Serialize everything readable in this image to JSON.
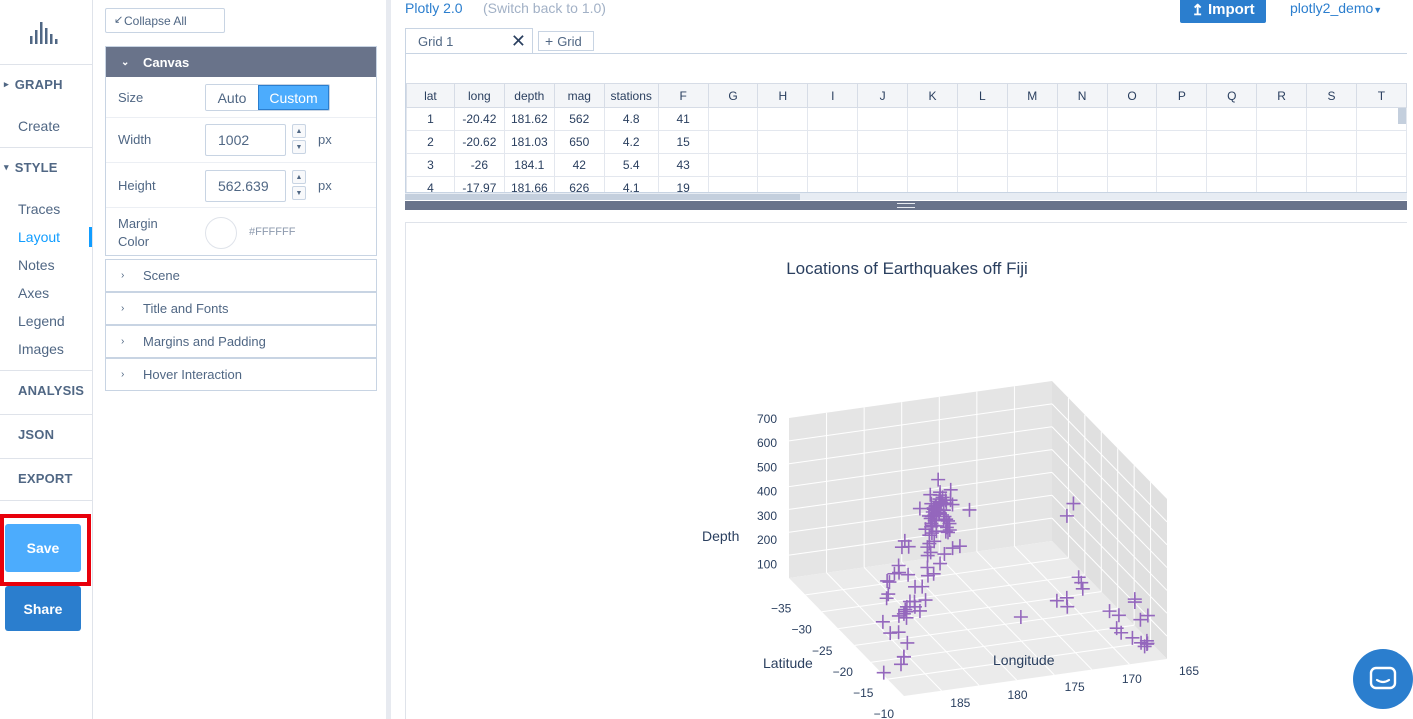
{
  "nav": {
    "logo_icon": "plotly-bars-icon",
    "graph_header": "GRAPH",
    "create": "Create",
    "style_header": "STYLE",
    "style_items": [
      "Traces",
      "Layout",
      "Notes",
      "Axes",
      "Legend",
      "Images"
    ],
    "active_item": "Layout",
    "analysis": "ANALYSIS",
    "json": "JSON",
    "export": "EXPORT",
    "save": "Save",
    "share": "Share"
  },
  "panel": {
    "collapse_all": "Collapse All",
    "canvas": {
      "title": "Canvas",
      "size_label": "Size",
      "size_options": [
        "Auto",
        "Custom"
      ],
      "size_selected": "Custom",
      "width_label": "Width",
      "width_value": "1002",
      "height_label": "Height",
      "height_value": "562.639",
      "unit": "px",
      "margin_color_label": "Margin Color",
      "margin_color_value": "#FFFFFF"
    },
    "sections": [
      "Scene",
      "Title and Fonts",
      "Margins and Padding",
      "Hover Interaction"
    ]
  },
  "topbar": {
    "version": "Plotly 2.0",
    "switch_back": "(Switch back to 1.0)",
    "import": "Import",
    "user": "plotly2_demo"
  },
  "grid": {
    "tab_name": "Grid 1",
    "add_grid": "Grid",
    "columns": [
      "lat",
      "long",
      "depth",
      "mag",
      "stations",
      "F",
      "G",
      "H",
      "I",
      "J",
      "K",
      "L",
      "M",
      "N",
      "O",
      "P",
      "Q",
      "R",
      "S",
      "T"
    ],
    "rows": [
      [
        "1",
        "-20.42",
        "181.62",
        "562",
        "4.8",
        "41"
      ],
      [
        "2",
        "-20.62",
        "181.03",
        "650",
        "4.2",
        "15"
      ],
      [
        "3",
        "-26",
        "184.1",
        "42",
        "5.4",
        "43"
      ],
      [
        "4",
        "-17.97",
        "181.66",
        "626",
        "4.1",
        "19"
      ]
    ]
  },
  "chart_data": {
    "type": "scatter3d",
    "title": "Locations of Earthquakes off Fiji",
    "marker_symbol": "cross",
    "marker_color": "#9467bd",
    "axes": {
      "x": {
        "title": "Latitude",
        "ticks": [
          -35,
          -30,
          -25,
          -20,
          -15,
          -10
        ],
        "range": [
          -38,
          -10
        ]
      },
      "y": {
        "title": "Longitude",
        "ticks": [
          165,
          170,
          175,
          180,
          185
        ],
        "range": [
          165,
          188
        ]
      },
      "z": {
        "title": "Depth",
        "ticks": [
          100,
          200,
          300,
          400,
          500,
          600,
          700
        ],
        "range": [
          40,
          700
        ]
      }
    },
    "points": [
      {
        "lat": -20.42,
        "long": 181.62,
        "depth": 562
      },
      {
        "lat": -20.62,
        "long": 181.03,
        "depth": 650
      },
      {
        "lat": -26,
        "long": 184.1,
        "depth": 42
      },
      {
        "lat": -17.97,
        "long": 181.66,
        "depth": 626
      },
      {
        "lat": -20.42,
        "long": 181.96,
        "depth": 649
      },
      {
        "lat": -19.68,
        "long": 184.31,
        "depth": 195
      },
      {
        "lat": -11.7,
        "long": 166.1,
        "depth": 82
      },
      {
        "lat": -28.11,
        "long": 181.93,
        "depth": 194
      },
      {
        "lat": -28.74,
        "long": 181.74,
        "depth": 211
      },
      {
        "lat": -17.47,
        "long": 179.59,
        "depth": 622
      },
      {
        "lat": -21.44,
        "long": 180.69,
        "depth": 583
      },
      {
        "lat": -12.26,
        "long": 167,
        "depth": 249
      },
      {
        "lat": -18.54,
        "long": 182.11,
        "depth": 554
      },
      {
        "lat": -21,
        "long": 181.66,
        "depth": 600
      },
      {
        "lat": -20.7,
        "long": 169.92,
        "depth": 139
      },
      {
        "lat": -15.94,
        "long": 184.95,
        "depth": 306
      },
      {
        "lat": -13.64,
        "long": 165.96,
        "depth": 50
      },
      {
        "lat": -17.83,
        "long": 181.5,
        "depth": 590
      },
      {
        "lat": -23.5,
        "long": 179.78,
        "depth": 570
      },
      {
        "lat": -22.63,
        "long": 180.31,
        "depth": 598
      },
      {
        "lat": -20.84,
        "long": 181.16,
        "depth": 576
      },
      {
        "lat": -10.98,
        "long": 166.32,
        "depth": 211
      },
      {
        "lat": -23.3,
        "long": 180.16,
        "depth": 512
      },
      {
        "lat": -30.2,
        "long": 182.22,
        "depth": 125
      },
      {
        "lat": -19.66,
        "long": 180.28,
        "depth": 431
      },
      {
        "lat": -17.94,
        "long": 181.49,
        "depth": 537
      },
      {
        "lat": -14.72,
        "long": 167.51,
        "depth": 155
      },
      {
        "lat": -16.46,
        "long": 180.79,
        "depth": 498
      },
      {
        "lat": -20.97,
        "long": 181.47,
        "depth": 582
      },
      {
        "lat": -19.84,
        "long": 182.37,
        "depth": 328
      },
      {
        "lat": -22.58,
        "long": 179.24,
        "depth": 553
      },
      {
        "lat": -16.32,
        "long": 166.74,
        "depth": 50
      },
      {
        "lat": -15.55,
        "long": 185.05,
        "depth": 292
      },
      {
        "lat": -23.55,
        "long": 180.8,
        "depth": 349
      },
      {
        "lat": -16.3,
        "long": 186,
        "depth": 48
      },
      {
        "lat": -25.82,
        "long": 179.33,
        "depth": 600
      },
      {
        "lat": -18.73,
        "long": 169.23,
        "depth": 206
      },
      {
        "lat": -17.64,
        "long": 181.28,
        "depth": 574
      },
      {
        "lat": -17.66,
        "long": 181.4,
        "depth": 585
      },
      {
        "lat": -18.82,
        "long": 169.33,
        "depth": 230
      },
      {
        "lat": -37.37,
        "long": 176.78,
        "depth": 263
      },
      {
        "lat": -15.31,
        "long": 186.1,
        "depth": 96
      },
      {
        "lat": -24.97,
        "long": 179.82,
        "depth": 511
      },
      {
        "lat": -15.49,
        "long": 186.04,
        "depth": 94
      },
      {
        "lat": -19.23,
        "long": 169.41,
        "depth": 246
      },
      {
        "lat": -30.1,
        "long": 182.3,
        "depth": 56
      },
      {
        "lat": -26.4,
        "long": 181.7,
        "depth": 329
      },
      {
        "lat": -11.77,
        "long": 166.32,
        "depth": 70
      },
      {
        "lat": -24.12,
        "long": 180.08,
        "depth": 493
      },
      {
        "lat": -18.97,
        "long": 185.25,
        "depth": 129
      },
      {
        "lat": -18.75,
        "long": 182.35,
        "depth": 554
      },
      {
        "lat": -19.26,
        "long": 184.42,
        "depth": 223
      },
      {
        "lat": -22.75,
        "long": 173.2,
        "depth": 46
      },
      {
        "lat": -21.37,
        "long": 180.67,
        "depth": 593
      },
      {
        "lat": -20.1,
        "long": 182.16,
        "depth": 489
      },
      {
        "lat": -19.85,
        "long": 182.13,
        "depth": 562
      },
      {
        "lat": -22.7,
        "long": 181,
        "depth": 445
      },
      {
        "lat": -22.06,
        "long": 180.6,
        "depth": 584
      },
      {
        "lat": -17.8,
        "long": 181.35,
        "depth": 535
      },
      {
        "lat": -24.2,
        "long": 179.2,
        "depth": 530
      },
      {
        "lat": -20.69,
        "long": 181.55,
        "depth": 582
      },
      {
        "lat": -21.16,
        "long": 182.4,
        "depth": 260
      },
      {
        "lat": -13.82,
        "long": 172.38,
        "depth": 613
      },
      {
        "lat": -11.49,
        "long": 166.22,
        "depth": 84
      },
      {
        "lat": -20.68,
        "long": 181.41,
        "depth": 593
      },
      {
        "lat": -17.1,
        "long": 184.93,
        "depth": 286
      },
      {
        "lat": -20.14,
        "long": 181.6,
        "depth": 587
      },
      {
        "lat": -21.96,
        "long": 179.62,
        "depth": 627
      },
      {
        "lat": -20.42,
        "long": 181.86,
        "depth": 530
      },
      {
        "lat": -15.46,
        "long": 187.81,
        "depth": 40
      },
      {
        "lat": -15.31,
        "long": 185.8,
        "depth": 152
      },
      {
        "lat": -19.86,
        "long": 184.35,
        "depth": 201
      },
      {
        "lat": -11.55,
        "long": 166.2,
        "depth": 96
      },
      {
        "lat": -23.74,
        "long": 179.99,
        "depth": 506
      },
      {
        "lat": -17.7,
        "long": 181.23,
        "depth": 546
      },
      {
        "lat": -23.54,
        "long": 180.04,
        "depth": 564
      },
      {
        "lat": -19.21,
        "long": 184.7,
        "depth": 197
      },
      {
        "lat": -12.11,
        "long": 167.06,
        "depth": 264
      },
      {
        "lat": -21.81,
        "long": 181.71,
        "depth": 323
      },
      {
        "lat": -28.98,
        "long": 181.11,
        "depth": 304
      },
      {
        "lat": -34.02,
        "long": 180.21,
        "depth": 75
      },
      {
        "lat": -23.84,
        "long": 180.99,
        "depth": 367
      },
      {
        "lat": -19.57,
        "long": 182.38,
        "depth": 579
      },
      {
        "lat": -20.12,
        "long": 183.4,
        "depth": 284
      },
      {
        "lat": -17.7,
        "long": 181.7,
        "depth": 450
      },
      {
        "lat": -19.66,
        "long": 184.31,
        "depth": 170
      },
      {
        "lat": -21.5,
        "long": 170.5,
        "depth": 117
      },
      {
        "lat": -23.64,
        "long": 179.96,
        "depth": 538
      },
      {
        "lat": -21.04,
        "long": 181.2,
        "depth": 483
      },
      {
        "lat": -14.99,
        "long": 171.39,
        "depth": 637
      },
      {
        "lat": -23.78,
        "long": 179.57,
        "depth": 470
      },
      {
        "lat": -24.97,
        "long": 179.55,
        "depth": 473
      },
      {
        "lat": -21.64,
        "long": 181.6,
        "depth": 424
      },
      {
        "lat": -18.21,
        "long": 181.58,
        "depth": 621
      },
      {
        "lat": -20.54,
        "long": 181.7,
        "depth": 574
      },
      {
        "lat": -18.99,
        "long": 182.7,
        "depth": 428
      },
      {
        "lat": -23.13,
        "long": 180.64,
        "depth": 401
      },
      {
        "lat": -15.22,
        "long": 184.24,
        "depth": 320
      },
      {
        "lat": -20.8,
        "long": 169.84,
        "depth": 100
      },
      {
        "lat": -32.22,
        "long": 180.2,
        "depth": 216
      },
      {
        "lat": -12.66,
        "long": 166.37,
        "depth": 165
      },
      {
        "lat": -21.24,
        "long": 181.59,
        "depth": 500
      },
      {
        "lat": -22.41,
        "long": 183.99,
        "depth": 128
      },
      {
        "lat": -18.04,
        "long": 181.57,
        "depth": 598
      },
      {
        "lat": -25.16,
        "long": 180.68,
        "depth": 416
      },
      {
        "lat": -26.57,
        "long": 178.3,
        "depth": 383
      },
      {
        "lat": -17.23,
        "long": 182.81,
        "depth": 384
      },
      {
        "lat": -20.7,
        "long": 185.36,
        "depth": 96
      },
      {
        "lat": -27.1,
        "long": 181.5,
        "depth": 200
      },
      {
        "lat": -29.7,
        "long": 182.3,
        "depth": 80
      },
      {
        "lat": -17.06,
        "long": 184.07,
        "depth": 242
      },
      {
        "lat": -14.88,
        "long": 167.65,
        "depth": 100
      },
      {
        "lat": -15.08,
        "long": 166.2,
        "depth": 47
      },
      {
        "lat": -21.78,
        "long": 179.7,
        "depth": 588
      },
      {
        "lat": -24.9,
        "long": 180.23,
        "depth": 470
      },
      {
        "lat": -21.3,
        "long": 180.3,
        "depth": 600
      },
      {
        "lat": -16.7,
        "long": 182.44,
        "depth": 433
      },
      {
        "lat": -31.47,
        "long": 181.56,
        "depth": 94
      },
      {
        "lat": -23.91,
        "long": 180.32,
        "depth": 471
      },
      {
        "lat": -12.52,
        "long": 169.12,
        "depth": 221
      }
    ]
  }
}
